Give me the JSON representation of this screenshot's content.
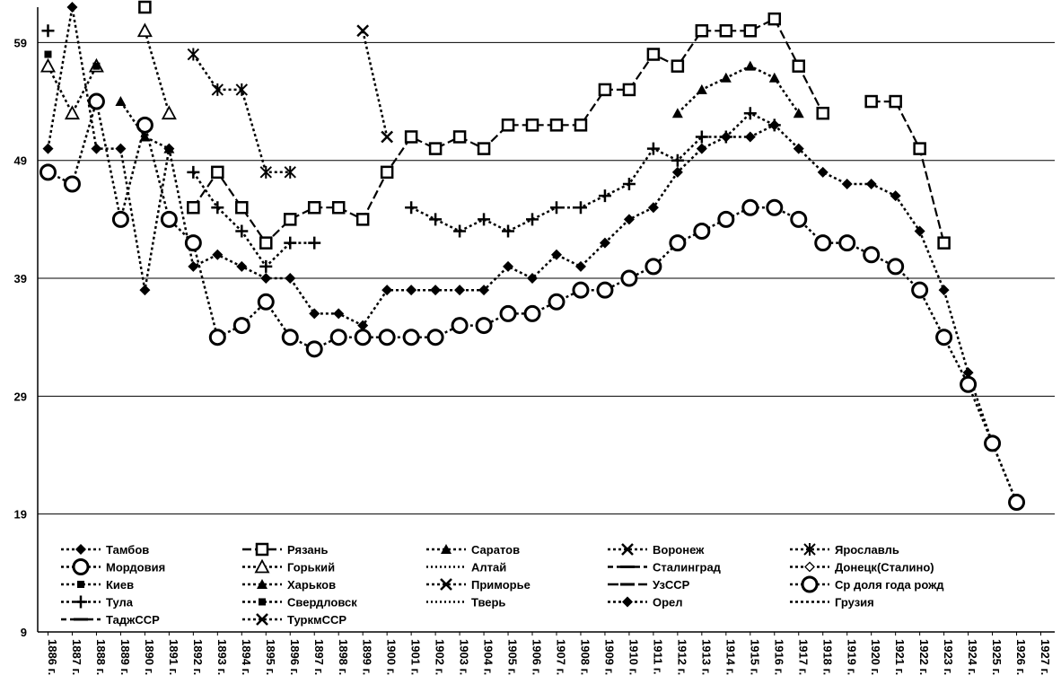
{
  "chart_data": {
    "type": "line",
    "title": "",
    "xlabel": "",
    "ylabel": "",
    "x": [
      "1886 г.",
      "1887 г.",
      "1888 г.",
      "1889 г.",
      "1890 г.",
      "1891 г.",
      "1892 г.",
      "1893 г.",
      "1894 г.",
      "1895 г.",
      "1896 г.",
      "1897 г.",
      "1898 г.",
      "1899 г.",
      "1900 г.",
      "1901 г.",
      "1902 г.",
      "1903 г.",
      "1904 г.",
      "1905 г.",
      "1906 г.",
      "1907 г.",
      "1908 г.",
      "1909 г.",
      "1910 г.",
      "1911 г.",
      "1912 г.",
      "1913 г.",
      "1914 г.",
      "1915 г.",
      "1916 г.",
      "1917 г.",
      "1918 г.",
      "1919 г.",
      "1920 г.",
      "1921 г.",
      "1922 г.",
      "1923 г.",
      "1924 г.",
      "1925 г.",
      "1926 г.",
      "1927 г."
    ],
    "yticks": [
      9,
      19,
      29,
      39,
      49,
      59
    ],
    "ylim": [
      9,
      62
    ],
    "grid": true,
    "legend_position": "bottom-inside",
    "series": [
      {
        "name": "Тамбов",
        "values": [
          50,
          62,
          50,
          50,
          38,
          50,
          40,
          41,
          40,
          39,
          39,
          36,
          36,
          35,
          38,
          38,
          38,
          38,
          38,
          40,
          39,
          41,
          40,
          42,
          44,
          45,
          48,
          50,
          51,
          51,
          52,
          50,
          48,
          47,
          47,
          46,
          43,
          38,
          31,
          25,
          20,
          null
        ]
      },
      {
        "name": "Рязань",
        "values": [
          null,
          null,
          null,
          null,
          62,
          null,
          45,
          48,
          45,
          42,
          44,
          45,
          45,
          44,
          48,
          51,
          50,
          51,
          50,
          52,
          52,
          52,
          52,
          55,
          55,
          58,
          57,
          60,
          60,
          60,
          61,
          57,
          53,
          null,
          54,
          54,
          50,
          42,
          null,
          null,
          null,
          null
        ]
      },
      {
        "name": "Саратов",
        "values": [
          null,
          null,
          null,
          null,
          null,
          null,
          null,
          null,
          null,
          null,
          null,
          null,
          null,
          null,
          null,
          null,
          null,
          null,
          null,
          null,
          null,
          null,
          null,
          null,
          null,
          null,
          53,
          55,
          56,
          57,
          56,
          53,
          null,
          null,
          null,
          null,
          null,
          null,
          null,
          null,
          null,
          null
        ]
      },
      {
        "name": "Воронеж",
        "values": [
          null,
          null,
          null,
          null,
          null,
          null,
          null,
          null,
          null,
          null,
          null,
          null,
          null,
          60,
          51,
          null,
          null,
          null,
          null,
          null,
          null,
          null,
          null,
          null,
          null,
          null,
          null,
          null,
          null,
          null,
          null,
          null,
          null,
          null,
          null,
          null,
          null,
          null,
          null,
          null,
          null,
          null
        ]
      },
      {
        "name": "Ярославль",
        "values": [
          null,
          null,
          null,
          null,
          null,
          null,
          58,
          55,
          55,
          48,
          48,
          null,
          null,
          null,
          null,
          null,
          null,
          null,
          null,
          null,
          null,
          null,
          null,
          null,
          null,
          null,
          null,
          null,
          null,
          null,
          null,
          null,
          null,
          null,
          null,
          null,
          null,
          null,
          null,
          null,
          null,
          null
        ]
      },
      {
        "name": "Мордовия",
        "values": [
          48,
          47,
          54,
          44,
          52,
          44,
          42,
          34,
          35,
          37,
          34,
          33,
          34,
          34,
          34,
          34,
          34,
          35,
          35,
          36,
          36,
          37,
          38,
          38,
          39,
          40,
          42,
          43,
          44,
          45,
          45,
          44,
          42,
          42,
          41,
          40,
          38,
          34,
          30,
          25,
          20,
          null
        ]
      },
      {
        "name": "Горький",
        "values": [
          57,
          53,
          57,
          null,
          60,
          53,
          null,
          null,
          null,
          null,
          null,
          null,
          null,
          null,
          null,
          null,
          null,
          null,
          null,
          null,
          null,
          null,
          null,
          null,
          null,
          null,
          null,
          null,
          null,
          null,
          null,
          null,
          null,
          null,
          null,
          null,
          null,
          null,
          null,
          null,
          null,
          null
        ]
      },
      {
        "name": "Алтай",
        "values": [
          null,
          null,
          null,
          null,
          null,
          null,
          null,
          null,
          null,
          null,
          null,
          null,
          null,
          null,
          null,
          null,
          null,
          null,
          null,
          null,
          null,
          null,
          null,
          null,
          null,
          null,
          null,
          null,
          null,
          null,
          null,
          null,
          null,
          null,
          null,
          null,
          null,
          null,
          null,
          null,
          null,
          null
        ]
      },
      {
        "name": "Сталинград",
        "values": [
          null,
          null,
          null,
          null,
          null,
          null,
          null,
          null,
          null,
          null,
          null,
          null,
          null,
          null,
          null,
          null,
          null,
          null,
          null,
          null,
          null,
          null,
          null,
          null,
          null,
          null,
          null,
          null,
          null,
          null,
          null,
          null,
          null,
          null,
          null,
          null,
          null,
          null,
          null,
          null,
          null,
          null
        ]
      },
      {
        "name": "Донецк(Сталино)",
        "values": [
          null,
          null,
          null,
          null,
          null,
          null,
          null,
          null,
          null,
          null,
          null,
          null,
          null,
          null,
          null,
          null,
          null,
          null,
          null,
          null,
          null,
          null,
          null,
          null,
          null,
          null,
          null,
          null,
          null,
          null,
          null,
          null,
          null,
          null,
          null,
          null,
          null,
          null,
          null,
          null,
          null,
          null
        ]
      },
      {
        "name": "Киев",
        "values": [
          58,
          null,
          57,
          null,
          null,
          null,
          null,
          null,
          null,
          null,
          null,
          null,
          null,
          null,
          null,
          null,
          null,
          null,
          null,
          null,
          null,
          null,
          null,
          null,
          null,
          null,
          null,
          null,
          null,
          null,
          null,
          null,
          null,
          null,
          null,
          null,
          null,
          null,
          null,
          null,
          null,
          null
        ]
      },
      {
        "name": "Харьков",
        "values": [
          null,
          null,
          null,
          54,
          51,
          50,
          null,
          null,
          null,
          null,
          null,
          null,
          null,
          null,
          null,
          null,
          null,
          null,
          null,
          null,
          null,
          null,
          null,
          null,
          null,
          null,
          null,
          null,
          null,
          null,
          null,
          null,
          null,
          null,
          null,
          null,
          null,
          null,
          null,
          null,
          null,
          null
        ]
      },
      {
        "name": "Приморье",
        "values": [
          null,
          null,
          null,
          null,
          null,
          null,
          null,
          null,
          null,
          null,
          null,
          null,
          null,
          null,
          null,
          null,
          null,
          null,
          null,
          null,
          null,
          null,
          null,
          null,
          null,
          null,
          null,
          null,
          null,
          null,
          null,
          null,
          null,
          null,
          null,
          null,
          null,
          null,
          null,
          null,
          null,
          null
        ]
      },
      {
        "name": "УзССР",
        "values": [
          null,
          null,
          null,
          null,
          null,
          null,
          null,
          null,
          null,
          null,
          null,
          null,
          null,
          null,
          null,
          null,
          null,
          null,
          null,
          null,
          null,
          null,
          null,
          null,
          null,
          null,
          null,
          null,
          null,
          null,
          null,
          null,
          null,
          null,
          null,
          null,
          null,
          null,
          null,
          null,
          null,
          null
        ]
      },
      {
        "name": "Ср доля года рожд",
        "values": [
          null,
          null,
          null,
          null,
          null,
          null,
          null,
          null,
          null,
          null,
          null,
          null,
          null,
          null,
          null,
          null,
          null,
          null,
          null,
          null,
          null,
          null,
          null,
          null,
          null,
          null,
          null,
          null,
          null,
          null,
          null,
          null,
          null,
          null,
          null,
          null,
          null,
          null,
          null,
          null,
          null,
          null
        ]
      },
      {
        "name": "Тула",
        "values": [
          60,
          null,
          null,
          null,
          null,
          null,
          48,
          45,
          43,
          40,
          42,
          42,
          null,
          null,
          null,
          45,
          44,
          43,
          44,
          43,
          44,
          45,
          45,
          46,
          47,
          50,
          49,
          51,
          51,
          53,
          52,
          null,
          null,
          null,
          null,
          null,
          null,
          null,
          null,
          null,
          null,
          null
        ]
      },
      {
        "name": "Свердловск",
        "values": [
          null,
          null,
          null,
          null,
          null,
          null,
          null,
          null,
          null,
          null,
          null,
          null,
          null,
          null,
          null,
          null,
          null,
          null,
          null,
          null,
          null,
          null,
          null,
          null,
          null,
          null,
          null,
          null,
          null,
          null,
          null,
          null,
          null,
          null,
          null,
          null,
          null,
          null,
          null,
          null,
          null,
          null
        ]
      },
      {
        "name": "Тверь",
        "values": [
          null,
          null,
          null,
          null,
          null,
          null,
          null,
          null,
          null,
          null,
          null,
          null,
          null,
          null,
          null,
          null,
          null,
          null,
          null,
          null,
          null,
          null,
          null,
          null,
          null,
          null,
          null,
          null,
          null,
          null,
          null,
          null,
          null,
          null,
          null,
          null,
          null,
          null,
          null,
          null,
          null,
          null
        ]
      },
      {
        "name": "Орел",
        "values": [
          null,
          null,
          null,
          null,
          null,
          null,
          null,
          null,
          null,
          null,
          null,
          null,
          null,
          null,
          null,
          null,
          null,
          null,
          null,
          null,
          null,
          null,
          null,
          null,
          null,
          null,
          null,
          null,
          null,
          null,
          null,
          null,
          null,
          null,
          null,
          null,
          null,
          null,
          null,
          null,
          null,
          null
        ]
      },
      {
        "name": "Грузия",
        "values": [
          null,
          null,
          null,
          null,
          null,
          null,
          null,
          null,
          null,
          null,
          null,
          null,
          null,
          null,
          null,
          null,
          null,
          null,
          null,
          null,
          null,
          null,
          null,
          null,
          null,
          null,
          null,
          null,
          null,
          null,
          null,
          null,
          null,
          null,
          null,
          null,
          null,
          null,
          null,
          null,
          null,
          null
        ]
      },
      {
        "name": "ТаджССР",
        "values": [
          null,
          null,
          null,
          null,
          null,
          null,
          null,
          null,
          null,
          null,
          null,
          null,
          null,
          null,
          null,
          null,
          null,
          null,
          null,
          null,
          null,
          null,
          null,
          null,
          null,
          null,
          null,
          null,
          null,
          null,
          null,
          null,
          null,
          null,
          null,
          null,
          null,
          null,
          null,
          null,
          null,
          null
        ]
      },
      {
        "name": "ТуркмССР",
        "values": [
          null,
          null,
          null,
          null,
          null,
          null,
          null,
          null,
          null,
          null,
          null,
          null,
          null,
          null,
          null,
          null,
          null,
          null,
          null,
          null,
          null,
          null,
          null,
          null,
          null,
          null,
          null,
          null,
          null,
          null,
          null,
          null,
          null,
          null,
          null,
          null,
          null,
          null,
          null,
          null,
          null,
          null
        ]
      }
    ],
    "legend_columns": 5
  }
}
